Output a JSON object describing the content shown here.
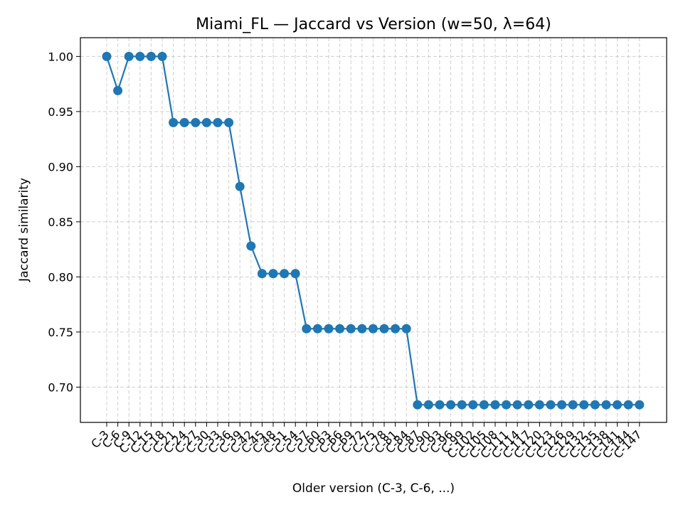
{
  "chart_data": {
    "type": "line",
    "title": "Miami_FL — Jaccard vs Version (w=50, λ=64)",
    "xlabel": "Older version (C-3, C-6, ...)",
    "ylabel": "Jaccard similarity",
    "ylim": [
      0.668,
      1.017
    ],
    "yticks": [
      "0.70",
      "0.75",
      "0.80",
      "0.85",
      "0.90",
      "0.95",
      "1.00"
    ],
    "grid": true,
    "color": "#1f77b4",
    "categories": [
      "C-3",
      "C-6",
      "C-9",
      "C-12",
      "C-15",
      "C-18",
      "C-21",
      "C-24",
      "C-27",
      "C-30",
      "C-33",
      "C-36",
      "C-39",
      "C-42",
      "C-45",
      "C-48",
      "C-51",
      "C-54",
      "C-57",
      "C-60",
      "C-63",
      "C-66",
      "C-69",
      "C-72",
      "C-75",
      "C-78",
      "C-81",
      "C-84",
      "C-87",
      "C-90",
      "C-93",
      "C-96",
      "C-99",
      "C-102",
      "C-105",
      "C-108",
      "C-111",
      "C-114",
      "C-117",
      "C-120",
      "C-123",
      "C-126",
      "C-129",
      "C-132",
      "C-135",
      "C-138",
      "C-141",
      "C-144",
      "C-147"
    ],
    "series": [
      {
        "values": [
          1.0,
          0.969,
          1.0,
          1.0,
          1.0,
          1.0,
          0.94,
          0.94,
          0.94,
          0.94,
          0.94,
          0.94,
          0.882,
          0.828,
          0.803,
          0.803,
          0.803,
          0.803,
          0.753,
          0.753,
          0.753,
          0.753,
          0.753,
          0.753,
          0.753,
          0.753,
          0.753,
          0.753,
          0.684,
          0.684,
          0.684,
          0.684,
          0.684,
          0.684,
          0.684,
          0.684,
          0.684,
          0.684,
          0.684,
          0.684,
          0.684,
          0.684,
          0.684,
          0.684,
          0.684,
          0.684,
          0.684,
          0.684,
          0.684
        ]
      }
    ]
  }
}
